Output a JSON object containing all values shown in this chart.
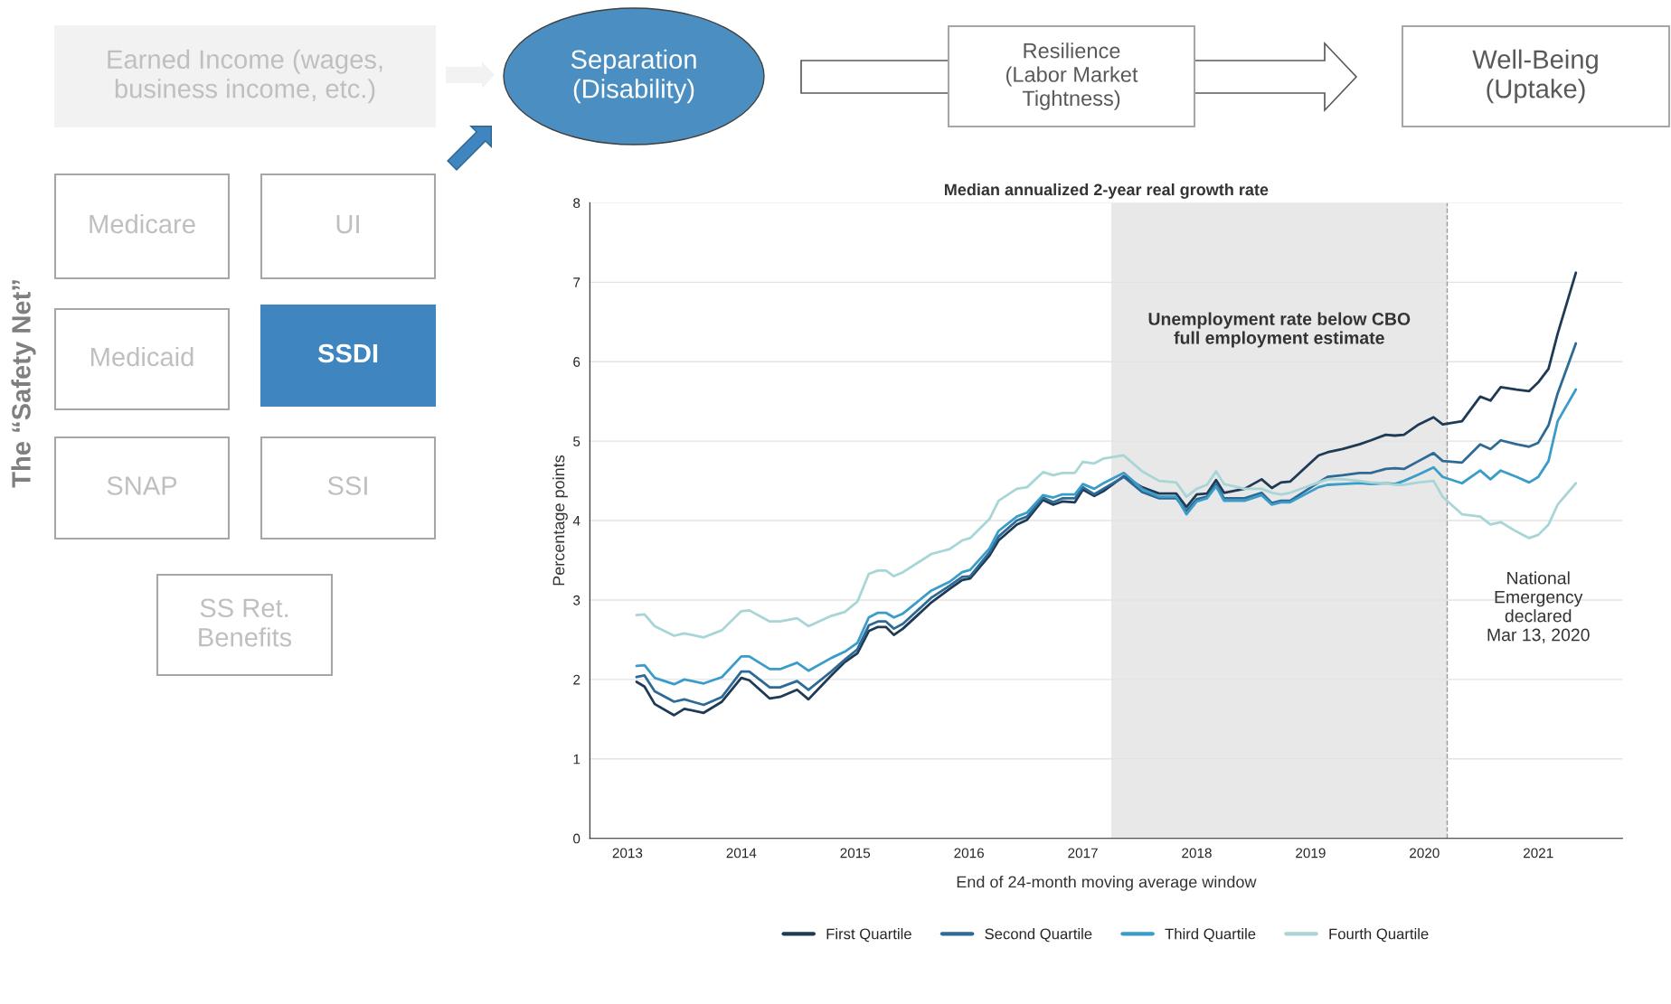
{
  "chart_data": [
    {
      "type": "other",
      "annotations": [
        "Earned Income (wages,\nbusiness income, etc.)",
        "Separation\n(Disability)",
        "Resilience\n(Labor Market\nTightness)",
        "Well-Being\n(Uptake)",
        "Medicare",
        "UI",
        "Medicaid",
        "SSDI",
        "SNAP",
        "SSI",
        "SS Ret.\nBenefits",
        "The “Safety Net”"
      ]
    },
    {
      "type": "line",
      "title": "Median annualized 2-year real growth rate",
      "xlabel": "End of 24-month moving average window",
      "ylabel": "Percentage points",
      "x": [
        2013.08,
        2013.15,
        2013.24,
        2013.41,
        2013.5,
        2013.67,
        2013.83,
        2014.0,
        2014.07,
        2014.25,
        2014.34,
        2014.49,
        2014.59,
        2014.79,
        2014.91,
        2015.02,
        2015.12,
        2015.2,
        2015.27,
        2015.34,
        2015.42,
        2015.67,
        2015.83,
        2015.94,
        2016.01,
        2016.18,
        2016.26,
        2016.42,
        2016.51,
        2016.65,
        2016.74,
        2016.82,
        2016.93,
        2017.0,
        2017.1,
        2017.18,
        2017.36,
        2017.52,
        2017.67,
        2017.82,
        2017.91,
        2018.0,
        2018.09,
        2018.17,
        2018.24,
        2018.42,
        2018.57,
        2018.66,
        2018.74,
        2018.82,
        2019.07,
        2019.15,
        2019.28,
        2019.43,
        2019.53,
        2019.66,
        2019.74,
        2019.82,
        2019.95,
        2020.08,
        2020.16,
        2020.33,
        2020.49,
        2020.58,
        2020.67,
        2020.81,
        2020.92,
        2021.0,
        2021.09,
        2021.17,
        2021.33
      ],
      "series": [
        {
          "name": "First Quartile",
          "color": "#1f3a55",
          "values": [
            1.97,
            1.91,
            1.69,
            1.55,
            1.63,
            1.58,
            1.72,
            2.02,
            1.99,
            1.76,
            1.78,
            1.87,
            1.75,
            2.05,
            2.22,
            2.33,
            2.61,
            2.66,
            2.66,
            2.56,
            2.64,
            2.97,
            3.14,
            3.25,
            3.27,
            3.56,
            3.75,
            3.95,
            4.01,
            4.26,
            4.2,
            4.24,
            4.23,
            4.39,
            4.31,
            4.37,
            4.56,
            4.42,
            4.34,
            4.34,
            4.17,
            4.33,
            4.34,
            4.51,
            4.35,
            4.4,
            4.52,
            4.41,
            4.48,
            4.49,
            4.82,
            4.86,
            4.9,
            4.96,
            5.01,
            5.08,
            5.07,
            5.08,
            5.21,
            5.3,
            5.21,
            5.25,
            5.56,
            5.51,
            5.68,
            5.65,
            5.63,
            5.74,
            5.91,
            6.35,
            7.12
          ]
        },
        {
          "name": "Second Quartile",
          "color": "#2e6a96",
          "values": [
            2.03,
            2.05,
            1.85,
            1.72,
            1.75,
            1.68,
            1.78,
            2.1,
            2.1,
            1.9,
            1.9,
            1.98,
            1.87,
            2.1,
            2.25,
            2.38,
            2.68,
            2.73,
            2.73,
            2.64,
            2.7,
            3.03,
            3.18,
            3.29,
            3.3,
            3.6,
            3.8,
            4.0,
            4.05,
            4.29,
            4.23,
            4.28,
            4.28,
            4.42,
            4.33,
            4.4,
            4.55,
            4.36,
            4.28,
            4.28,
            4.12,
            4.27,
            4.3,
            4.46,
            4.28,
            4.28,
            4.35,
            4.22,
            4.25,
            4.25,
            4.48,
            4.55,
            4.57,
            4.6,
            4.6,
            4.65,
            4.66,
            4.65,
            4.75,
            4.85,
            4.75,
            4.73,
            4.96,
            4.9,
            5.01,
            4.96,
            4.93,
            4.98,
            5.2,
            5.6,
            6.23
          ]
        },
        {
          "name": "Third Quartile",
          "color": "#3a9cc8",
          "values": [
            2.17,
            2.18,
            2.02,
            1.94,
            2.0,
            1.95,
            2.03,
            2.29,
            2.29,
            2.13,
            2.13,
            2.21,
            2.11,
            2.27,
            2.35,
            2.46,
            2.78,
            2.84,
            2.84,
            2.78,
            2.83,
            3.12,
            3.23,
            3.35,
            3.38,
            3.65,
            3.87,
            4.05,
            4.1,
            4.32,
            4.29,
            4.33,
            4.33,
            4.46,
            4.4,
            4.47,
            4.6,
            4.4,
            4.3,
            4.3,
            4.08,
            4.24,
            4.28,
            4.43,
            4.25,
            4.25,
            4.32,
            4.2,
            4.23,
            4.23,
            4.42,
            4.45,
            4.46,
            4.47,
            4.46,
            4.47,
            4.46,
            4.5,
            4.58,
            4.67,
            4.55,
            4.47,
            4.63,
            4.52,
            4.63,
            4.55,
            4.48,
            4.55,
            4.75,
            5.25,
            5.65
          ]
        },
        {
          "name": "Fourth Quartile",
          "color": "#a8d5d5",
          "values": [
            2.81,
            2.82,
            2.67,
            2.55,
            2.58,
            2.53,
            2.62,
            2.86,
            2.87,
            2.73,
            2.73,
            2.77,
            2.67,
            2.8,
            2.85,
            2.98,
            3.33,
            3.37,
            3.37,
            3.3,
            3.35,
            3.58,
            3.64,
            3.75,
            3.78,
            4.02,
            4.25,
            4.4,
            4.42,
            4.61,
            4.57,
            4.6,
            4.6,
            4.74,
            4.72,
            4.78,
            4.82,
            4.62,
            4.5,
            4.48,
            4.3,
            4.4,
            4.45,
            4.62,
            4.46,
            4.4,
            4.4,
            4.35,
            4.33,
            4.35,
            4.48,
            4.52,
            4.52,
            4.5,
            4.48,
            4.47,
            4.45,
            4.45,
            4.48,
            4.5,
            4.3,
            4.08,
            4.05,
            3.95,
            3.98,
            3.86,
            3.78,
            3.82,
            3.95,
            4.2,
            4.47
          ]
        }
      ],
      "xlim": [
        2012.67,
        2021.74
      ],
      "xticks": [
        2013,
        2014,
        2015,
        2016,
        2017,
        2018,
        2019,
        2020,
        2021
      ],
      "ylim": [
        0,
        8
      ],
      "yticks": [
        0,
        1,
        2,
        3,
        4,
        5,
        6,
        7,
        8
      ],
      "bands": [
        {
          "axis": "x",
          "from": 2017.25,
          "to": 2020.2,
          "label": "Unemployment rate below CBO\nfull employment estimate",
          "color": "#e8e8e8"
        }
      ],
      "ref_lines": [
        {
          "axis": "x",
          "value": 2020.2,
          "label": "National\nEmergency\ndeclared\nMar 13, 2020",
          "color": "#999999",
          "line_style": "dashed"
        }
      ],
      "grid": "y",
      "legend": "bottom",
      "line_style": "solid",
      "marker": "none"
    }
  ]
}
